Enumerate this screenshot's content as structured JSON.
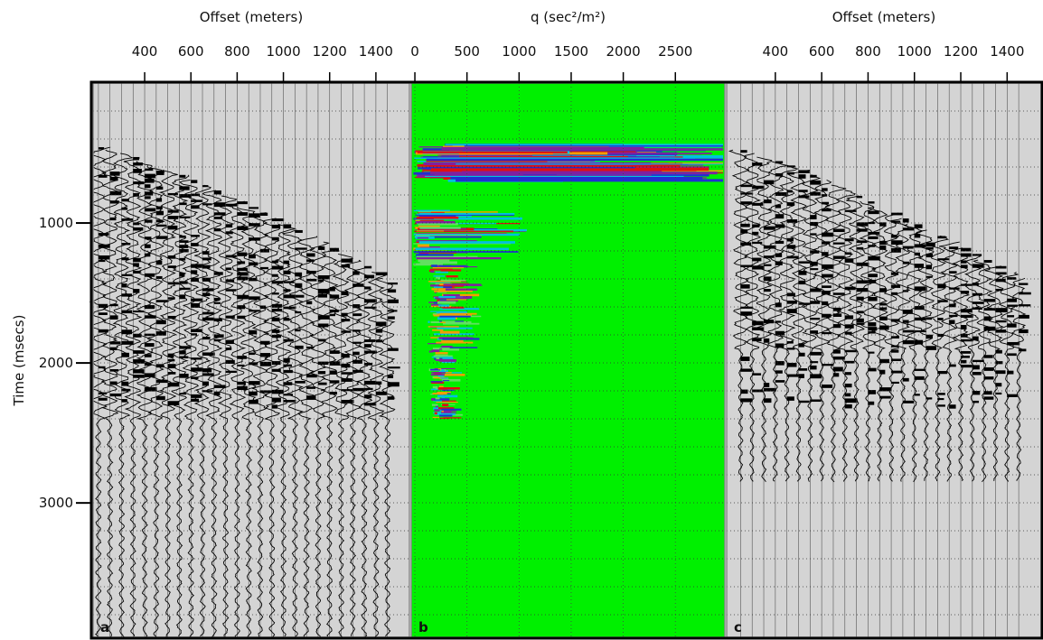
{
  "chart_data": [
    {
      "type": "seismic",
      "panel_label": "a",
      "x_label": "Offset (meters)",
      "xlim": [
        177,
        1545
      ],
      "xticks": [
        400,
        600,
        800,
        1000,
        1200,
        1400
      ],
      "y_label": "Time (msecs)",
      "ylim": [
        0,
        3960
      ],
      "yticks": [
        1000,
        2000,
        3000
      ]
    },
    {
      "type": "heatmap",
      "panel_label": "b",
      "x_label": "q (sec²/m²)",
      "xlim": [
        -35,
        2975
      ],
      "xticks": [
        0,
        500,
        1000,
        1500,
        2000,
        2500
      ],
      "ylim": [
        0,
        3960
      ]
    },
    {
      "type": "seismic",
      "panel_label": "c",
      "x_label": "Offset (meters)",
      "xlim": [
        190,
        1547
      ],
      "xticks": [
        400,
        600,
        800,
        1000,
        1200,
        1400
      ],
      "ylim": [
        0,
        3960
      ]
    }
  ]
}
